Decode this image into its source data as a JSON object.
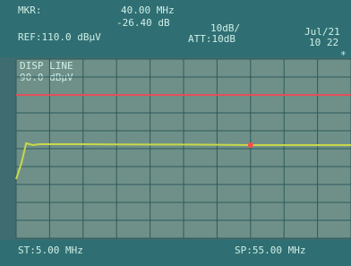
{
  "header": {
    "marker_label": "MKR:",
    "marker_freq": "40.00 MHz",
    "marker_level": "-26.40 dB",
    "ref_level": "REF:110.0 dBµV",
    "scale": "10dB/",
    "attenuation": "ATT:10dB",
    "date": "Jul/21",
    "time": "10 22",
    "flag": "*",
    "display_line_label": "DISP LINE"
  },
  "footer": {
    "start": "ST:5.00 MHz",
    "stop": "SP:55.00 MHz"
  },
  "chart_data": {
    "type": "line",
    "x": [
      5,
      5.8,
      6.5,
      7.5,
      8.5,
      10,
      15,
      20,
      25,
      30,
      35,
      40,
      45,
      50,
      55
    ],
    "series": [
      {
        "color": "#c8d84a",
        "values": [
          43,
          52,
          63,
          62,
          62.5,
          62.5,
          62.5,
          62.4,
          62.3,
          62.3,
          62.2,
          62,
          62,
          62,
          62
        ]
      }
    ],
    "display_line": {
      "value": 90,
      "label": "90.0 dBµV",
      "color": "#e0505a"
    },
    "marker": {
      "x": 40,
      "y": 62,
      "color": "#ff4a4a"
    },
    "xlim": [
      5,
      55
    ],
    "ylim": [
      10,
      110
    ]
  }
}
